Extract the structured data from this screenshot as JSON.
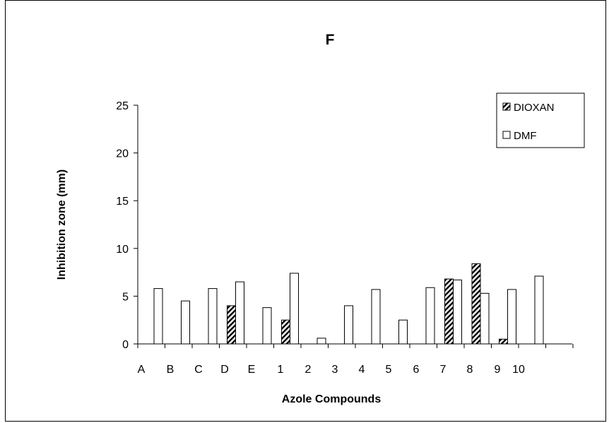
{
  "chart_data": {
    "type": "bar",
    "title": "F",
    "xlabel": "Azole Compounds",
    "ylabel": "Inhibition zone (mm)",
    "ylim": [
      0,
      25
    ],
    "yticks": [
      0,
      5,
      10,
      15,
      20,
      25
    ],
    "categories": [
      "A",
      "B",
      "C",
      "D",
      "E",
      "1",
      "2",
      "3",
      "4",
      "5",
      "6",
      "7",
      "8",
      "9",
      "10"
    ],
    "series": [
      {
        "name": "DIOXAN",
        "pattern": "diagonal-hatch",
        "values": [
          0,
          0,
          0,
          4.0,
          0,
          2.5,
          0,
          0,
          0,
          0,
          0,
          6.8,
          8.4,
          0.5,
          0
        ]
      },
      {
        "name": "DMF",
        "pattern": "hollow",
        "values": [
          5.8,
          4.5,
          5.8,
          6.5,
          3.8,
          7.4,
          0.6,
          4.0,
          5.7,
          2.5,
          5.9,
          6.7,
          5.3,
          5.7,
          7.1
        ]
      }
    ],
    "legend_position": "top-right",
    "grid": false
  }
}
